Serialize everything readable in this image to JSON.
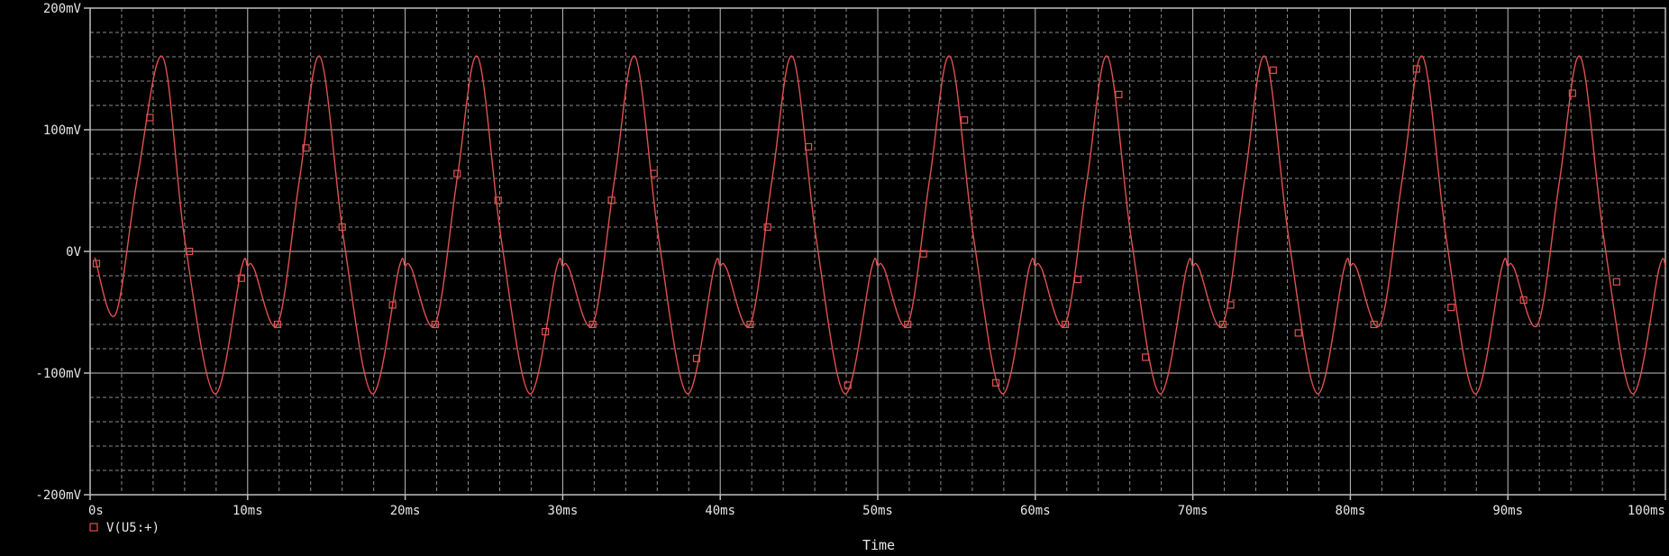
{
  "chart_data": {
    "type": "line",
    "title": "",
    "xlabel": "Time",
    "ylabel": "",
    "xlim": [
      0,
      100
    ],
    "ylim": [
      -200,
      200
    ],
    "x_unit": "ms",
    "y_unit": "mV",
    "x_ticks": [
      {
        "value": 0,
        "label": "0s"
      },
      {
        "value": 10,
        "label": "10ms"
      },
      {
        "value": 20,
        "label": "20ms"
      },
      {
        "value": 30,
        "label": "30ms"
      },
      {
        "value": 40,
        "label": "40ms"
      },
      {
        "value": 50,
        "label": "50ms"
      },
      {
        "value": 60,
        "label": "60ms"
      },
      {
        "value": 70,
        "label": "70ms"
      },
      {
        "value": 80,
        "label": "80ms"
      },
      {
        "value": 90,
        "label": "90ms"
      },
      {
        "value": 100,
        "label": "100ms"
      }
    ],
    "y_ticks": [
      {
        "value": 200,
        "label": "200mV"
      },
      {
        "value": 100,
        "label": "100mV"
      },
      {
        "value": 0,
        "label": "0V"
      },
      {
        "value": -100,
        "label": "-100mV"
      },
      {
        "value": -200,
        "label": "-200mV"
      }
    ],
    "grid": true,
    "legend": "bottom-left",
    "series": [
      {
        "name": "V(U5:+)",
        "color": "#e05050",
        "marker": "square",
        "x": [
          0.3,
          1.6,
          3.0,
          4.6,
          6.0,
          7.9,
          9.6,
          10.0,
          10.4,
          11.9,
          13.3,
          14.6,
          16.1,
          17.9,
          19.6,
          20.0,
          20.4,
          21.9,
          23.3,
          24.6,
          26.1,
          27.9,
          29.6,
          30.0,
          30.4,
          31.9,
          33.3,
          34.6,
          36.1,
          37.9,
          39.6,
          40.0,
          40.4,
          41.9,
          43.3,
          44.6,
          46.1,
          47.9,
          49.6,
          50.0,
          50.4,
          51.9,
          53.3,
          54.6,
          56.1,
          57.9,
          59.6,
          60.0,
          60.4,
          61.9,
          63.3,
          64.6,
          66.1,
          67.9,
          69.6,
          70.0,
          70.4,
          71.9,
          73.3,
          74.6,
          76.1,
          77.9,
          79.6,
          80.0,
          80.4,
          81.9,
          83.3,
          84.6,
          86.1,
          87.9,
          89.6,
          90.0,
          90.4,
          91.9,
          93.3,
          94.6,
          96.1,
          97.9,
          99.6,
          100.0
        ],
        "y": [
          -5,
          -52,
          60,
          160,
          10,
          -117,
          -14,
          -12,
          -14,
          -60,
          60,
          160,
          10,
          -117,
          -14,
          -12,
          -14,
          -60,
          60,
          160,
          10,
          -117,
          -14,
          -12,
          -14,
          -60,
          60,
          160,
          10,
          -117,
          -14,
          -12,
          -14,
          -60,
          60,
          160,
          10,
          -117,
          -14,
          -12,
          -14,
          -60,
          60,
          160,
          10,
          -117,
          -14,
          -12,
          -14,
          -60,
          60,
          160,
          10,
          -117,
          -14,
          -12,
          -14,
          -60,
          60,
          160,
          10,
          -117,
          -14,
          -12,
          -14,
          -60,
          60,
          160,
          10,
          -117,
          -14,
          -12,
          -14,
          -60,
          60,
          160,
          10,
          -117,
          -14,
          -12
        ],
        "markers_x": [
          0.4,
          3.8,
          6.3,
          9.6,
          11.9,
          13.7,
          16.0,
          19.2,
          21.9,
          23.3,
          25.9,
          28.9,
          31.9,
          33.1,
          35.8,
          38.5,
          41.9,
          43.0,
          45.6,
          48.1,
          51.9,
          52.9,
          55.5,
          57.5,
          61.9,
          62.7,
          65.3,
          67.0,
          71.9,
          72.4,
          75.1,
          76.7,
          81.5,
          84.2,
          86.4,
          91.0,
          94.1,
          96.9
        ],
        "markers_y": [
          -10,
          110,
          0,
          -22,
          -60,
          85,
          20,
          -44,
          -60,
          64,
          42,
          -66,
          -60,
          42,
          64,
          -88,
          -60,
          20,
          86,
          -110,
          -60,
          -2,
          108,
          -108,
          -60,
          -23,
          129,
          -87,
          -60,
          -44,
          149,
          -67,
          -60,
          150,
          -46,
          -40,
          130,
          -25
        ]
      }
    ]
  }
}
